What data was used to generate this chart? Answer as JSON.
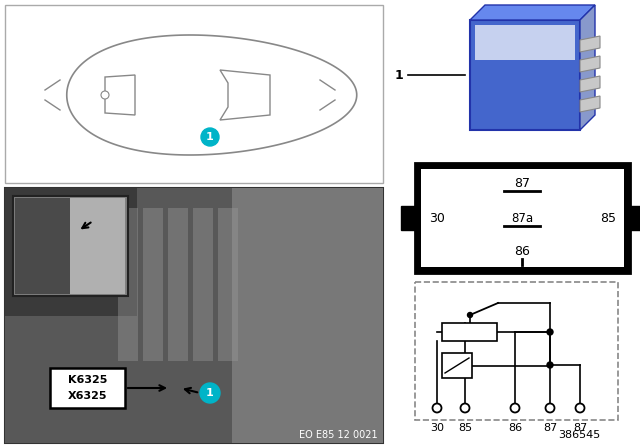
{
  "bg_color": "#ffffff",
  "schematic_pin_labels": [
    "30",
    "85",
    "86",
    "87",
    "87"
  ],
  "k6325_text": "K6325",
  "x6325_text": "X6325",
  "eo_text": "EO E85 12 0021",
  "ref_text": "386545",
  "relay_blue_color": "#3a5fcd",
  "car_outline_color": "#888888",
  "photo_bg_dark": "#5a5a5a",
  "photo_bg_mid": "#888888",
  "cyan_color": "#00b4c8"
}
